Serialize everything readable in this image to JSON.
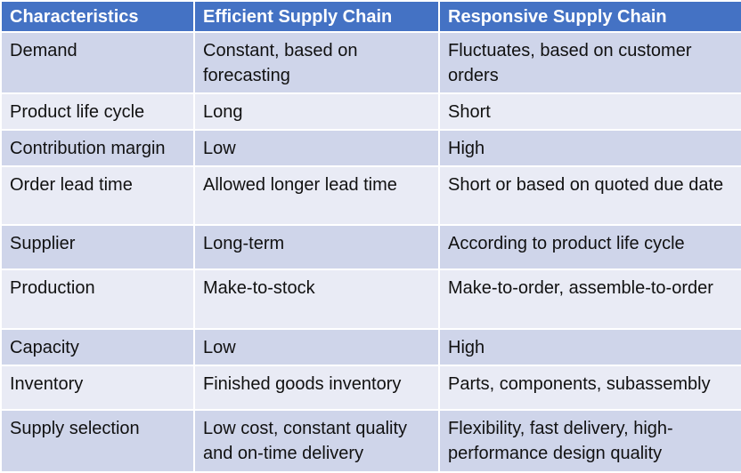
{
  "table": {
    "headers": [
      "Characteristics",
      "Efficient Supply Chain",
      "Responsive Supply Chain"
    ],
    "rows": [
      {
        "characteristic": "Demand",
        "efficient": "Constant, based on forecasting",
        "responsive": "Fluctuates, based on customer orders"
      },
      {
        "characteristic": "Product life cycle",
        "efficient": "Long",
        "responsive": "Short"
      },
      {
        "characteristic": "Contribution margin",
        "efficient": "Low",
        "responsive": "High"
      },
      {
        "characteristic": "Order lead time",
        "efficient": "Allowed longer lead time",
        "responsive": "Short or based on quoted due date"
      },
      {
        "characteristic": "Supplier",
        "efficient": "Long-term",
        "responsive": "According to product life cycle"
      },
      {
        "characteristic": "Production",
        "efficient": "Make-to-stock",
        "responsive": "Make-to-order, assemble-to-order"
      },
      {
        "characteristic": "Capacity",
        "efficient": "Low",
        "responsive": "High"
      },
      {
        "characteristic": "Inventory",
        "efficient": "Finished goods inventory",
        "responsive": "Parts, components, subassembly"
      },
      {
        "characteristic": "Supply selection",
        "efficient": "Low cost, constant quality and on-time delivery",
        "responsive": "Flexibility, fast delivery, high-performance design quality"
      }
    ]
  },
  "colors": {
    "header_bg": "#4472c4",
    "row_dark": "#cfd5ea",
    "row_light": "#e9ebf5"
  }
}
